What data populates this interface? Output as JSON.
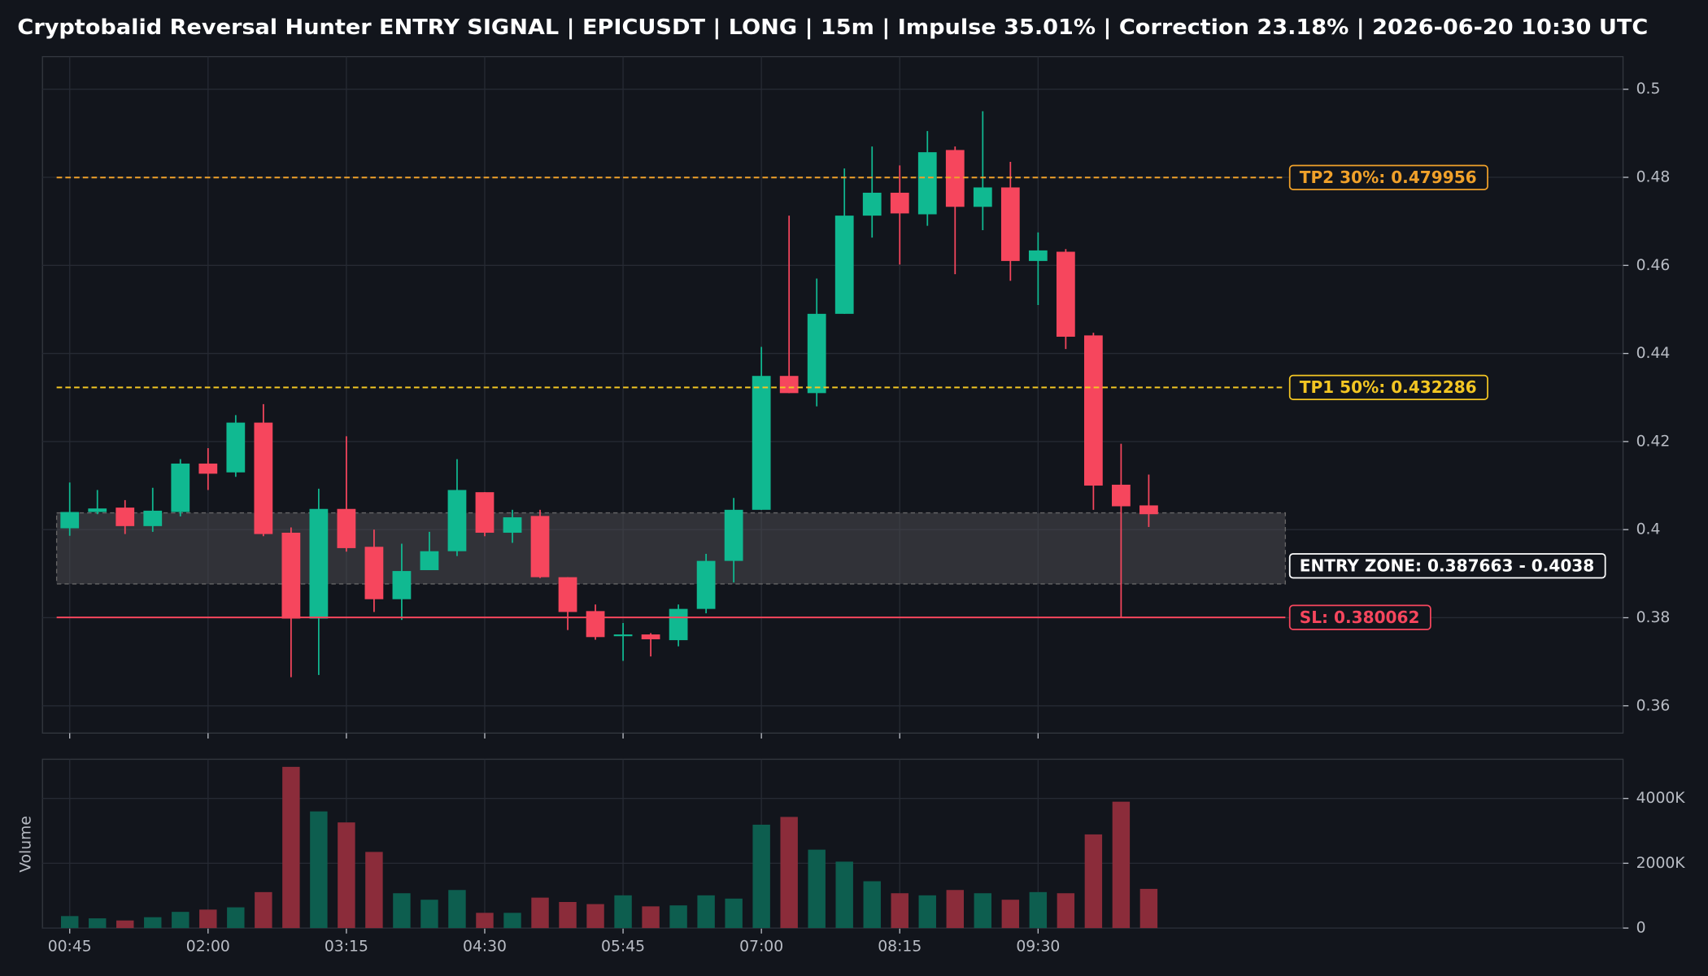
{
  "chart_data": [
    {
      "type": "candlestick",
      "title": "Cryptobalid Reversal Hunter ENTRY SIGNAL | EPICUSDT | LONG | 15m | Impulse 35.01% | Correction 23.18% | 2026-06-20 10:30 UTC",
      "x": [
        "00:45",
        null,
        null,
        null,
        null,
        "02:00",
        null,
        null,
        null,
        null,
        "03:15",
        null,
        null,
        null,
        null,
        "04:30",
        null,
        null,
        null,
        null,
        "05:45",
        null,
        null,
        null,
        null,
        "07:00",
        null,
        null,
        null,
        null,
        "08:15",
        null,
        null,
        null,
        null,
        "09:30",
        null,
        null,
        null,
        null
      ],
      "open": [
        0.4003,
        0.404,
        0.405,
        0.4008,
        0.404,
        0.415,
        0.413,
        0.4243,
        0.3993,
        0.3798,
        0.4047,
        0.3961,
        0.3842,
        0.3908,
        0.3951,
        0.4085,
        0.3993,
        0.4031,
        0.3892,
        0.3815,
        0.3758,
        0.3762,
        0.3749,
        0.382,
        0.3929,
        0.4045,
        0.4349,
        0.431,
        0.449,
        0.4713,
        0.4765,
        0.4716,
        0.4862,
        0.4733,
        0.4777,
        0.461,
        0.4631,
        0.4441,
        0.4102,
        0.4055
      ],
      "high": [
        0.4107,
        0.409,
        0.4067,
        0.4095,
        0.416,
        0.4185,
        0.426,
        0.4285,
        0.4005,
        0.4093,
        0.4212,
        0.4,
        0.3968,
        0.3995,
        0.416,
        0.4085,
        0.4045,
        0.4045,
        0.3892,
        0.383,
        0.3788,
        0.3765,
        0.383,
        0.3945,
        0.4072,
        0.4415,
        0.4713,
        0.457,
        0.482,
        0.487,
        0.4827,
        0.4905,
        0.487,
        0.495,
        0.4835,
        0.4675,
        0.4637,
        0.4447,
        0.4195,
        0.4125
      ],
      "low": [
        0.3986,
        0.4035,
        0.399,
        0.3995,
        0.403,
        0.409,
        0.412,
        0.3985,
        0.3665,
        0.367,
        0.395,
        0.3813,
        0.3795,
        0.3908,
        0.394,
        0.3985,
        0.397,
        0.389,
        0.3772,
        0.375,
        0.3702,
        0.3712,
        0.3735,
        0.381,
        0.388,
        0.4045,
        0.431,
        0.428,
        0.449,
        0.4663,
        0.4602,
        0.469,
        0.458,
        0.468,
        0.4565,
        0.451,
        0.441,
        0.4045,
        0.3801,
        0.4006
      ],
      "close": [
        0.404,
        0.4048,
        0.4008,
        0.4043,
        0.415,
        0.4127,
        0.4243,
        0.399,
        0.3798,
        0.4047,
        0.3958,
        0.3842,
        0.3906,
        0.3951,
        0.409,
        0.3993,
        0.4028,
        0.3892,
        0.3813,
        0.3756,
        0.3762,
        0.3751,
        0.382,
        0.3929,
        0.4045,
        0.4349,
        0.431,
        0.449,
        0.4713,
        0.4765,
        0.4718,
        0.4857,
        0.4733,
        0.4777,
        0.461,
        0.4634,
        0.4438,
        0.41,
        0.4053,
        0.4035
      ],
      "up_color": "#10b991",
      "down_color": "#f6465d",
      "ylim": [
        0.3538,
        0.5074
      ],
      "yticks": [
        0.36,
        0.38,
        0.4,
        0.42,
        0.44,
        0.46,
        0.48,
        0.5
      ],
      "grid": true,
      "annotations": [
        {
          "label": "TP2 30%: 0.479956",
          "value": 0.479956,
          "color": "#f0a12a",
          "style": "dashed"
        },
        {
          "label": "TP1 50%: 0.432286",
          "value": 0.432286,
          "color": "#f3c623",
          "style": "dashed"
        },
        {
          "label": "SL: 0.380062",
          "value": 0.380062,
          "color": "#f6465d",
          "style": "solid"
        },
        {
          "label": "ENTRY ZONE: 0.387663 - 0.4038",
          "range": [
            0.387663,
            0.4038
          ],
          "color": "#ffffff",
          "style": "zone"
        }
      ]
    },
    {
      "type": "bar",
      "ylabel": "Volume",
      "values": [
        370000,
        300000,
        235000,
        335000,
        500000,
        570000,
        640000,
        1110000,
        4975000,
        3600000,
        3260000,
        2350000,
        1075000,
        875000,
        1175000,
        470000,
        470000,
        940000,
        805000,
        740000,
        1010000,
        670000,
        700000,
        1010000,
        910000,
        3190000,
        3430000,
        2420000,
        2050000,
        1445000,
        1075000,
        1010000,
        1175000,
        1075000,
        875000,
        1110000,
        1075000,
        2890000,
        3900000,
        1210000
      ],
      "up_color": "#0d5e4f",
      "down_color": "#8b2c3a",
      "ylim": [
        0,
        5210000
      ],
      "yticks": [
        0,
        {
          "value": 2000000,
          "label": "2000K"
        },
        {
          "value": 4000000,
          "label": "4000K"
        }
      ],
      "grid": true
    }
  ]
}
